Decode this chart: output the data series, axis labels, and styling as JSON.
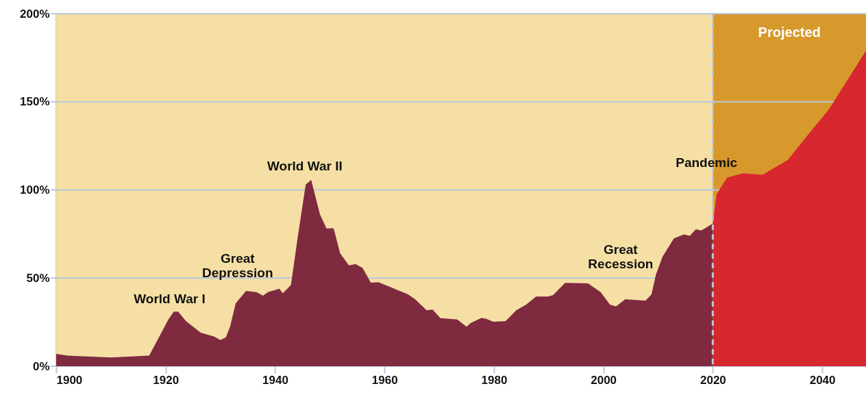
{
  "chart_data": {
    "type": "area",
    "xlim": [
      1900,
      2048
    ],
    "ylim": [
      0,
      200
    ],
    "xticks": [
      1900,
      1920,
      1940,
      1960,
      1980,
      2000,
      2020,
      2040
    ],
    "yticks": [
      {
        "value": 0,
        "label": "0%"
      },
      {
        "value": 50,
        "label": "50%"
      },
      {
        "value": 100,
        "label": "100%"
      },
      {
        "value": 150,
        "label": "150%"
      },
      {
        "value": 200,
        "label": "200%"
      }
    ],
    "grid": "y",
    "series": [
      {
        "color": "#7f2a3f",
        "x": [
          1900,
          1902,
          1910,
          1917,
          1920.5,
          1921.5,
          1922.3,
          1923.7,
          1926.4,
          1928.9,
          1930,
          1931,
          1931.8,
          1932.8,
          1934.7,
          1936.6,
          1937.8,
          1938.7,
          1940.8,
          1941.4,
          1942.9,
          1944.2,
          1945.6,
          1946.6,
          1948.2,
          1949.4,
          1950.7,
          1951.9,
          1953.5,
          1954.7,
          1956,
          1957.5,
          1958.9,
          1964.3,
          1965.6,
          1967.7,
          1968.8,
          1970.2,
          1973.3,
          1975,
          1975.8,
          1977.7,
          1978.5,
          1979.9,
          1982.1,
          1984.1,
          1985.9,
          1987.7,
          1989.8,
          1990.8,
          1993,
          1997.2,
          1999.5,
          2001.2,
          2002.3,
          2004,
          2007.7,
          2008.8,
          2009.6,
          2010.8,
          2012.9,
          2014.7,
          2015.8,
          2016.9,
          2017.9,
          2020
        ],
        "values": [
          7,
          6,
          5,
          6,
          26.5,
          31,
          31,
          25.6,
          19,
          16.8,
          14.9,
          16.3,
          22.6,
          35.6,
          42.7,
          42,
          40,
          42,
          44,
          41.4,
          46,
          74.4,
          103,
          105.7,
          86.2,
          78.2,
          78.3,
          64,
          57.2,
          58,
          55.7,
          47.4,
          47.7,
          40.8,
          38,
          31.7,
          32.1,
          27.3,
          26.5,
          22.4,
          24.6,
          27.4,
          27,
          25.2,
          25.5,
          31.7,
          35,
          39.5,
          39.5,
          40.3,
          47.3,
          47,
          42,
          35,
          33.9,
          38,
          37.2,
          40.8,
          51.8,
          62,
          72.5,
          74.8,
          74,
          77.7,
          77,
          81
        ]
      },
      {
        "color": "#d7282f",
        "x": [
          2020,
          2020.7,
          2022.6,
          2025.4,
          2029.1,
          2033.7,
          2037.4,
          2041.2,
          2048
        ],
        "values": [
          81,
          97.7,
          107,
          109.4,
          108.6,
          117,
          131.4,
          145.6,
          179
        ]
      }
    ],
    "bands": [
      {
        "axis": "x",
        "from": 1900,
        "to": 2020,
        "color": "#f5dfa5"
      },
      {
        "axis": "x",
        "from": 2020,
        "to": 2048,
        "color": "#d8992c",
        "label": "Projected"
      }
    ],
    "ref_lines": [
      {
        "axis": "x",
        "value": 2020,
        "color": "#b7c7dc",
        "line_style": "dashed"
      }
    ],
    "annotations": [
      "World War I",
      "Great\nDepression",
      "World War II",
      "Great\nRecession",
      "Pandemic"
    ]
  }
}
